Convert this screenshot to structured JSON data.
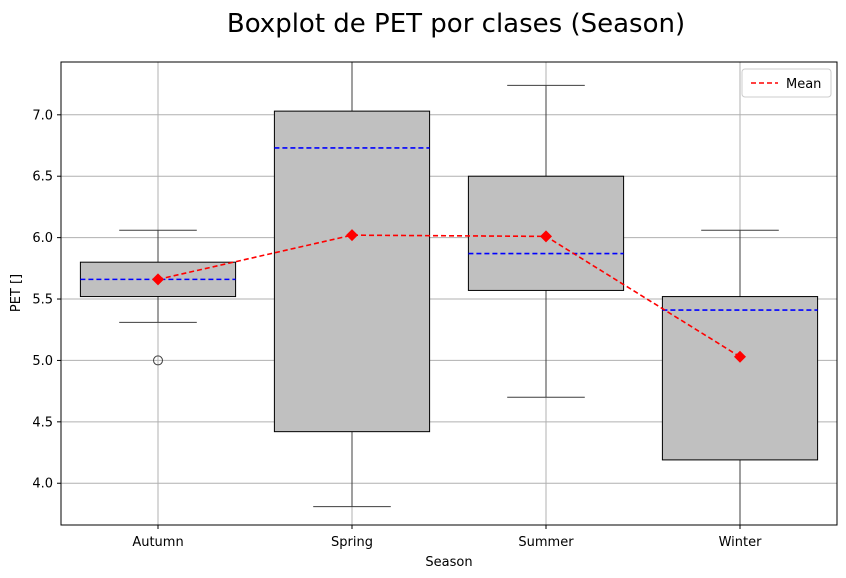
{
  "chart_data": {
    "type": "boxplot",
    "title": "Boxplot de PET por clases (Season)",
    "xlabel": "Season",
    "ylabel": "PET []",
    "ylim": [
      3.66,
      7.43
    ],
    "yticks": [
      4.0,
      4.5,
      5.0,
      5.5,
      6.0,
      6.5,
      7.0
    ],
    "ytick_labels": [
      "4.0",
      "4.5",
      "5.0",
      "5.5",
      "6.0",
      "6.5",
      "7.0"
    ],
    "grid": true,
    "categories": [
      "Autumn",
      "Spring",
      "Summer",
      "Winter"
    ],
    "boxes": [
      {
        "category": "Autumn",
        "whisker_low": 5.31,
        "q1": 5.52,
        "median": 5.66,
        "q3": 5.8,
        "whisker_high": 6.06,
        "mean": 5.66,
        "outliers": [
          5.0
        ]
      },
      {
        "category": "Spring",
        "whisker_low": 3.81,
        "q1": 4.42,
        "median": 6.73,
        "q3": 7.03,
        "whisker_high": 7.43,
        "mean": 6.02,
        "outliers": []
      },
      {
        "category": "Summer",
        "whisker_low": 4.7,
        "q1": 5.57,
        "median": 5.87,
        "q3": 6.5,
        "whisker_high": 7.24,
        "mean": 6.01,
        "outliers": []
      },
      {
        "category": "Winter",
        "whisker_low": 3.66,
        "q1": 4.19,
        "median": 5.41,
        "q3": 5.52,
        "whisker_high": 6.06,
        "mean": 5.03,
        "outliers": []
      }
    ],
    "legend": {
      "position": "top-right",
      "entries": [
        {
          "label": "Mean",
          "style": "dashed-line"
        }
      ]
    },
    "colors": {
      "box_fill": "#c0c0c0",
      "box_edge": "#000000",
      "whisker": "#3f3f3f",
      "median": "#0000ff",
      "mean": "#ff0000",
      "grid": "#b0b0b0"
    }
  }
}
